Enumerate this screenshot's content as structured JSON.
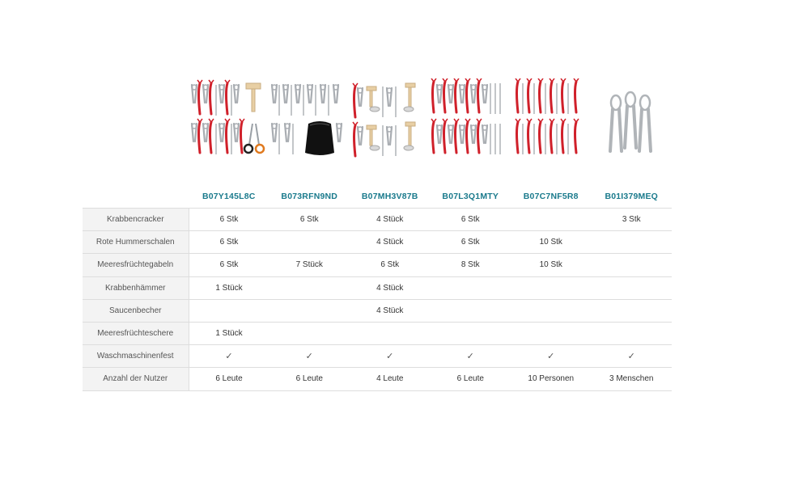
{
  "products": [
    {
      "asin": "B07Y145L8C",
      "image": "crackers-forks-mallets-scissors-icon"
    },
    {
      "asin": "B073RFN9ND",
      "image": "crackers-forks-pouch-icon"
    },
    {
      "asin": "B07MH3V87B",
      "image": "crackers-mallets-sauce-cups-icon"
    },
    {
      "asin": "B07L3Q1MTY",
      "image": "crackers-red-shellers-forks-icon"
    },
    {
      "asin": "B07C7NF5R8",
      "image": "red-shellers-forks-icon"
    },
    {
      "asin": "B01I379MEQ",
      "image": "three-crackers-icon"
    }
  ],
  "rows": [
    {
      "label": "Krabbencracker",
      "values": [
        "6 Stk",
        "6 Stk",
        "4 Stück",
        "6 Stk",
        "",
        "3 Stk"
      ]
    },
    {
      "label": "Rote Hummerschalen",
      "values": [
        "6 Stk",
        "",
        "4 Stück",
        "6 Stk",
        "10 Stk",
        ""
      ]
    },
    {
      "label": "Meeresfrüchtegabeln",
      "values": [
        "6 Stk",
        "7 Stück",
        "6 Stk",
        "8 Stk",
        "10 Stk",
        ""
      ]
    },
    {
      "label": "Krabbenhämmer",
      "values": [
        "1 Stück",
        "",
        "4 Stück",
        "",
        "",
        ""
      ]
    },
    {
      "label": "Saucenbecher",
      "values": [
        "",
        "",
        "4 Stück",
        "",
        "",
        ""
      ]
    },
    {
      "label": "Meeresfrüchteschere",
      "values": [
        "1 Stück",
        "",
        "",
        "",
        "",
        ""
      ]
    },
    {
      "label": "Waschmaschinenfest",
      "values": [
        "✓",
        "✓",
        "✓",
        "✓",
        "✓",
        "✓"
      ]
    },
    {
      "label": "Anzahl der Nutzer",
      "values": [
        "6 Leute",
        "6 Leute",
        "4 Leute",
        "6 Leute",
        "10 Personen",
        "3 Menschen"
      ]
    }
  ],
  "colors": {
    "asin_text": "#1a7a8c",
    "label_bg": "#f3f3f3",
    "grid": "#dddddd",
    "sheller_red": "#d0202a",
    "steel": "#b9bcc0"
  }
}
